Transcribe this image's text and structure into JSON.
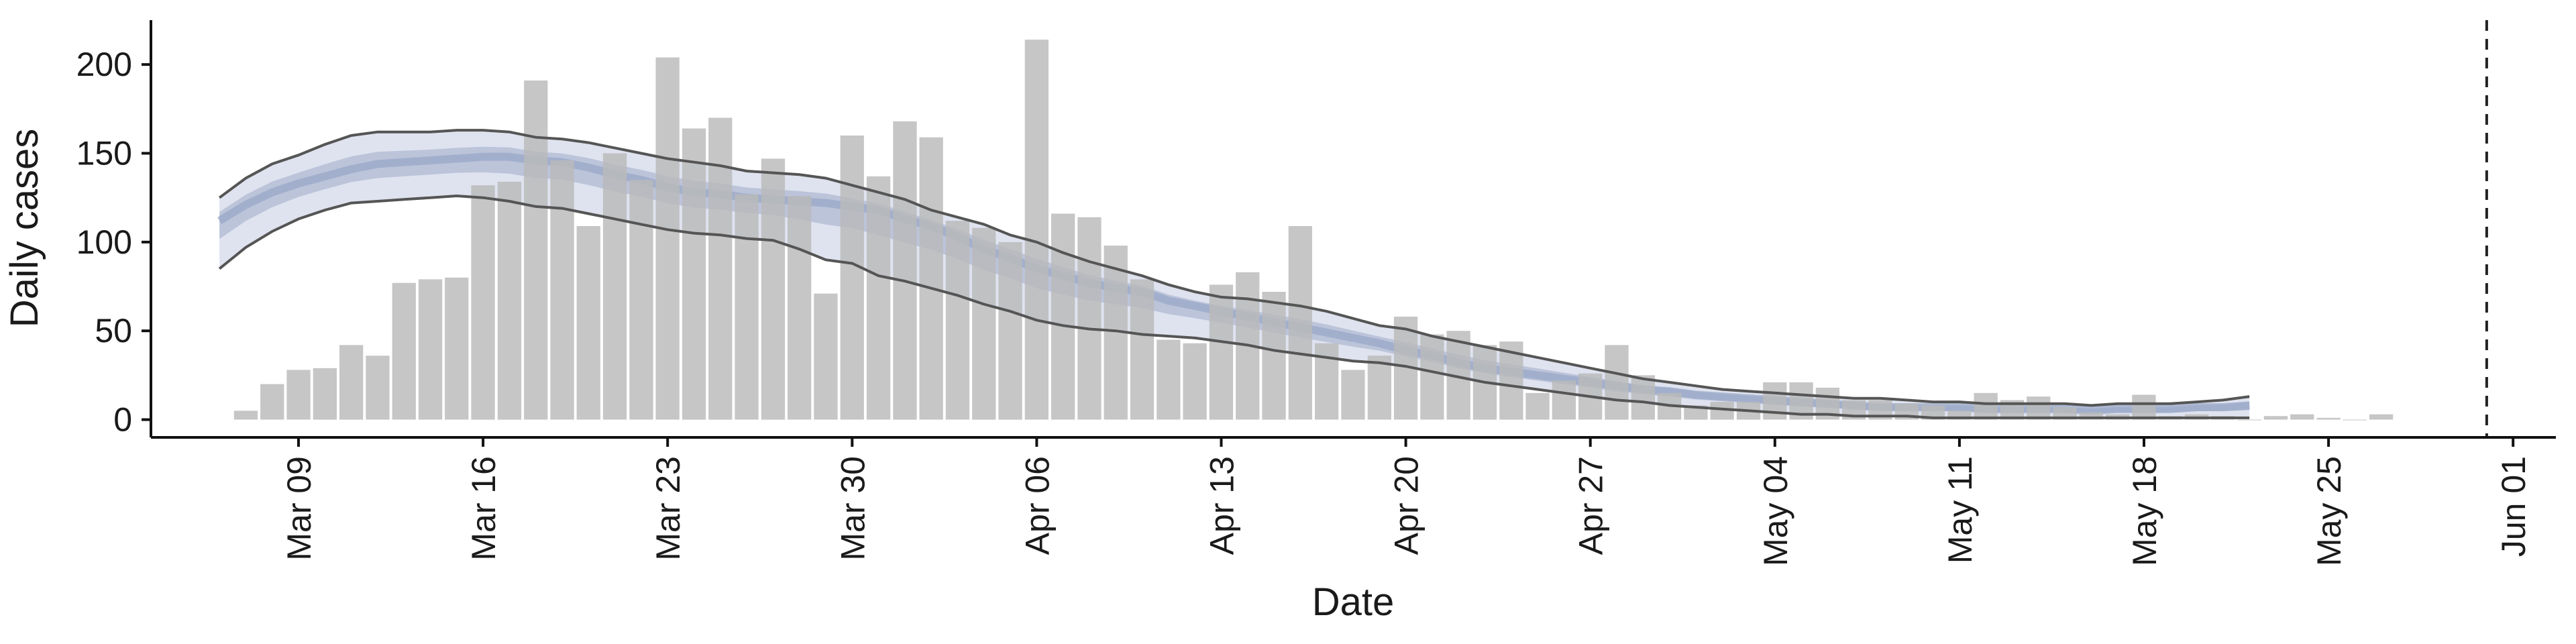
{
  "chart_data": {
    "type": "bar",
    "xlabel": "Date",
    "ylabel": "Daily cases",
    "ylim": [
      -10,
      225
    ],
    "y_ticks": [
      0,
      50,
      100,
      150,
      200
    ],
    "x_ticks": [
      {
        "label": "Mar 09",
        "day": 8
      },
      {
        "label": "Mar 16",
        "day": 15
      },
      {
        "label": "Mar 23",
        "day": 22
      },
      {
        "label": "Mar 30",
        "day": 29
      },
      {
        "label": "Apr 06",
        "day": 36
      },
      {
        "label": "Apr 13",
        "day": 43
      },
      {
        "label": "Apr 20",
        "day": 50
      },
      {
        "label": "Apr 27",
        "day": 57
      },
      {
        "label": "May 04",
        "day": 64
      },
      {
        "label": "May 11",
        "day": 71
      },
      {
        "label": "May 18",
        "day": 78
      },
      {
        "label": "May 25",
        "day": 85
      },
      {
        "label": "Jun 01",
        "day": 92
      }
    ],
    "bars": {
      "start_date": "Mar 07",
      "start_day": 6,
      "values": [
        5,
        20,
        28,
        29,
        42,
        36,
        77,
        79,
        80,
        132,
        134,
        191,
        146,
        109,
        150,
        135,
        204,
        164,
        170,
        127,
        147,
        126,
        71,
        160,
        137,
        168,
        159,
        112,
        108,
        100,
        214,
        116,
        114,
        98,
        79,
        45,
        43,
        76,
        83,
        72,
        109,
        43,
        28,
        36,
        58,
        48,
        50,
        42,
        44,
        15,
        22,
        26,
        42,
        25,
        15,
        8,
        10,
        10,
        21,
        21,
        18,
        11,
        11,
        9,
        8,
        5,
        15,
        11,
        13,
        7,
        4,
        3,
        14,
        2,
        3,
        2,
        0,
        2,
        3,
        1,
        0,
        3
      ],
      "color": "#bababa"
    },
    "nowcast_vline_day": 91,
    "estimate": {
      "start_day": 5,
      "day_step": 1,
      "median": [
        112,
        121,
        128,
        133,
        137,
        141,
        144,
        145,
        146,
        147,
        148,
        148,
        146,
        145,
        142,
        138,
        135,
        131,
        128,
        127,
        125,
        124,
        123,
        122,
        120,
        118,
        113,
        109,
        103,
        96,
        91,
        85,
        81,
        77,
        74,
        72,
        67,
        64,
        61,
        58,
        55,
        52,
        49,
        46,
        43,
        39,
        36,
        32,
        29,
        27,
        25,
        23,
        21,
        19,
        17,
        16,
        14,
        13,
        12,
        11,
        10,
        9,
        8,
        7,
        7,
        7,
        7,
        6,
        6,
        6,
        6,
        5,
        6,
        6,
        6,
        7,
        7,
        8
      ],
      "lower90": [
        85,
        97,
        106,
        113,
        118,
        122,
        123,
        124,
        125,
        126,
        125,
        123,
        120,
        119,
        116,
        113,
        110,
        107,
        105,
        104,
        102,
        101,
        96,
        90,
        88,
        81,
        78,
        74,
        70,
        65,
        61,
        56,
        53,
        51,
        50,
        48,
        47,
        46,
        44,
        42,
        39,
        37,
        35,
        33,
        32,
        30,
        27,
        24,
        21,
        19,
        17,
        15,
        13,
        11,
        10,
        8,
        7,
        6,
        5,
        4,
        3,
        3,
        2,
        2,
        2,
        1,
        1,
        1,
        1,
        1,
        1,
        1,
        1,
        1,
        1,
        1,
        1,
        1
      ],
      "upper90": [
        125,
        136,
        144,
        149,
        155,
        160,
        162,
        162,
        162,
        163,
        163,
        162,
        159,
        158,
        156,
        153,
        150,
        147,
        145,
        143,
        140,
        139,
        138,
        136,
        132,
        128,
        124,
        118,
        114,
        110,
        104,
        100,
        94,
        89,
        85,
        81,
        76,
        72,
        69,
        68,
        66,
        64,
        61,
        57,
        53,
        51,
        47,
        44,
        41,
        38,
        35,
        32,
        29,
        26,
        23,
        21,
        19,
        17,
        16,
        15,
        14,
        13,
        12,
        12,
        11,
        10,
        10,
        9,
        9,
        9,
        9,
        8,
        9,
        9,
        9,
        10,
        11,
        13
      ],
      "band_outer_color": "#dfe3ef",
      "band_inner_color": "#bcc4da",
      "median_color": "#97a6c6",
      "bound_line_color": "#555555"
    }
  }
}
